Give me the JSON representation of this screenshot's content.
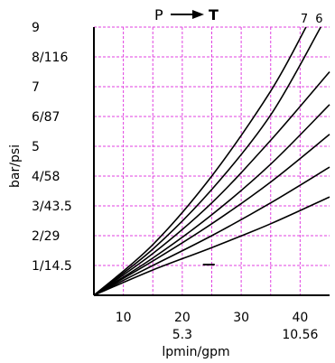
{
  "chart_data": {
    "type": "line",
    "title_left": "P",
    "title_right": "T",
    "title_arrow": "arrow-right-icon",
    "xlabel": "lpmin/gpm",
    "ylabel": "bar/psi",
    "xlim": [
      5,
      45
    ],
    "ylim": [
      0,
      9
    ],
    "x_ticks": [
      {
        "value": 10,
        "label": "10",
        "sublabel": ""
      },
      {
        "value": 20,
        "label": "20",
        "sublabel": "5.3"
      },
      {
        "value": 30,
        "label": "30",
        "sublabel": ""
      },
      {
        "value": 40,
        "label": "40",
        "sublabel": "10.56"
      }
    ],
    "y_ticks": [
      {
        "value": 1,
        "label": "1/14.5"
      },
      {
        "value": 2,
        "label": "2/29"
      },
      {
        "value": 3,
        "label": "3/43.5"
      },
      {
        "value": 4,
        "label": "4/58"
      },
      {
        "value": 5,
        "label": "5"
      },
      {
        "value": 6,
        "label": "6/87"
      },
      {
        "value": 7,
        "label": "7"
      },
      {
        "value": 8,
        "label": "8/116"
      },
      {
        "value": 9,
        "label": "9"
      }
    ],
    "x_grid": [
      10,
      15,
      20,
      25,
      30,
      35,
      40
    ],
    "grid": true,
    "grid_color": "#e040e0",
    "line_color": "#000000",
    "series": [
      {
        "name": "7",
        "x": [
          5,
          15,
          25,
          35,
          41
        ],
        "y": [
          0,
          1.7,
          4.0,
          6.85,
          9.0
        ]
      },
      {
        "name": "6",
        "x": [
          5,
          15,
          25,
          35,
          43.5
        ],
        "y": [
          0,
          1.55,
          3.55,
          6.05,
          9.0
        ]
      },
      {
        "name": "",
        "x": [
          5,
          15,
          25,
          35,
          45
        ],
        "y": [
          0,
          1.4,
          3.1,
          5.2,
          7.5
        ]
      },
      {
        "name": "",
        "x": [
          5,
          15,
          25,
          35,
          45
        ],
        "y": [
          0,
          1.25,
          2.7,
          4.4,
          6.4
        ]
      },
      {
        "name": "",
        "x": [
          5,
          15,
          25,
          35,
          45
        ],
        "y": [
          0,
          1.15,
          2.4,
          3.8,
          5.4
        ]
      },
      {
        "name": "",
        "x": [
          5,
          15,
          25,
          35,
          45
        ],
        "y": [
          0,
          1.0,
          2.0,
          3.1,
          4.3
        ]
      },
      {
        "name": "",
        "x": [
          5,
          15,
          25,
          35,
          45
        ],
        "y": [
          0,
          0.85,
          1.6,
          2.4,
          3.3
        ]
      }
    ],
    "marker": {
      "x": [
        23.5,
        25.5
      ],
      "y": 1
    }
  }
}
